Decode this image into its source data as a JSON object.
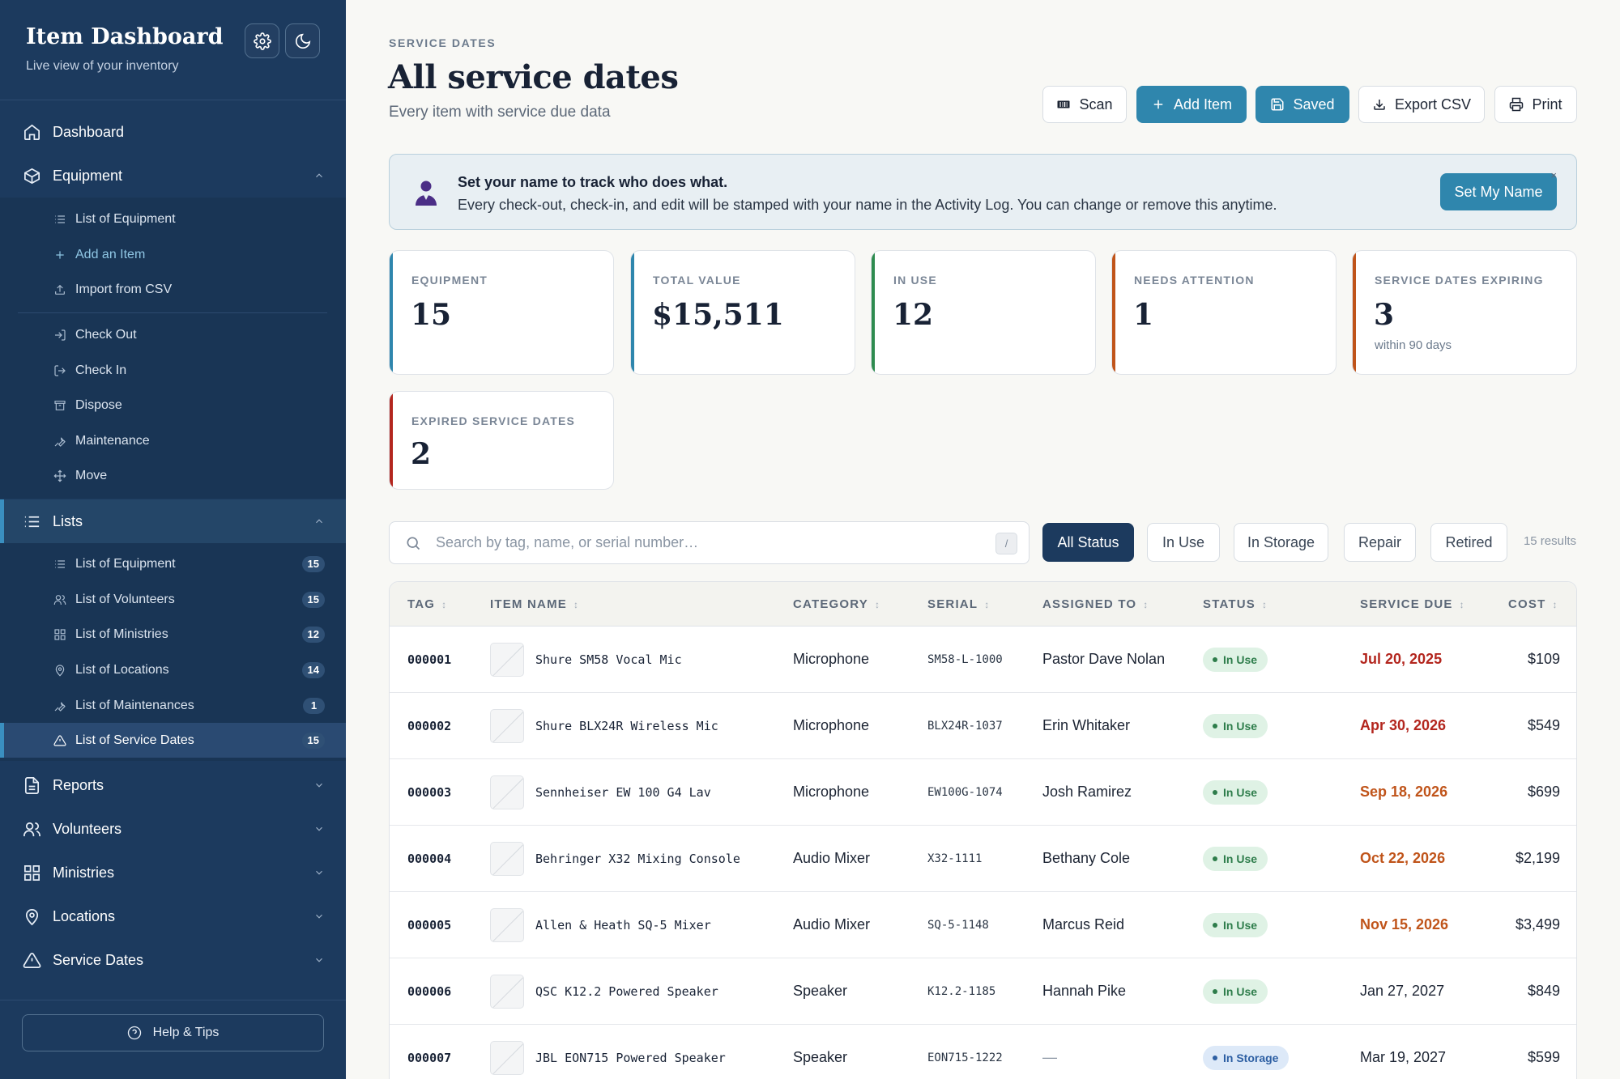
{
  "sidebar": {
    "title": "Item Dashboard",
    "subtitle": "Live view of your inventory",
    "nav": {
      "dashboard": "Dashboard",
      "equipment": "Equipment",
      "equipment_items": [
        "List of Equipment",
        "Add an Item",
        "Import from CSV"
      ],
      "action_items": [
        "Check Out",
        "Check In",
        "Dispose",
        "Maintenance",
        "Move"
      ],
      "lists": "Lists",
      "list_items": [
        {
          "label": "List of Equipment",
          "count": "15"
        },
        {
          "label": "List of Volunteers",
          "count": "15"
        },
        {
          "label": "List of Ministries",
          "count": "12"
        },
        {
          "label": "List of Locations",
          "count": "14"
        },
        {
          "label": "List of Maintenances",
          "count": "1"
        },
        {
          "label": "List of Service Dates",
          "count": "15"
        }
      ],
      "reports": "Reports",
      "volunteers": "Volunteers",
      "ministries": "Ministries",
      "locations": "Locations",
      "service_dates": "Service Dates"
    },
    "help": "Help & Tips"
  },
  "header": {
    "eyebrow": "SERVICE DATES",
    "title": "All service dates",
    "subtitle": "Every item with service due data"
  },
  "actions": {
    "scan": "Scan",
    "add": "Add Item",
    "saved": "Saved",
    "export": "Export CSV",
    "print": "Print"
  },
  "banner": {
    "title": "Set your name to track who does what.",
    "text": "Every check-out, check-in, and edit will be stamped with your name in the Activity Log. You can change or remove this anytime.",
    "button": "Set My Name",
    "close": "×"
  },
  "stats": [
    {
      "label": "EQUIPMENT",
      "value": "15",
      "note": "",
      "color": "#2f86ad"
    },
    {
      "label": "TOTAL VALUE",
      "value": "$15,511",
      "note": "",
      "color": "#2f86ad"
    },
    {
      "label": "IN USE",
      "value": "12",
      "note": "",
      "color": "#2e8b4f"
    },
    {
      "label": "NEEDS ATTENTION",
      "value": "1",
      "note": "",
      "color": "#c0541a"
    },
    {
      "label": "SERVICE DATES EXPIRING",
      "value": "3",
      "note": "within 90 days",
      "color": "#c0541a"
    },
    {
      "label": "EXPIRED SERVICE DATES",
      "value": "2",
      "note": "",
      "color": "#b3261e"
    }
  ],
  "filters": {
    "search_placeholder": "Search by tag, name, or serial number…",
    "shortcut": "/",
    "chips": [
      "All Status",
      "In Use",
      "In Storage",
      "Repair",
      "Retired"
    ],
    "results": "15 results"
  },
  "table": {
    "headers": [
      "TAG",
      "ITEM NAME",
      "CATEGORY",
      "SERIAL",
      "ASSIGNED TO",
      "STATUS",
      "SERVICE DUE",
      "COST"
    ],
    "sort_glyph": "↕",
    "rows": [
      {
        "tag": "000001",
        "name": "Shure SM58 Vocal Mic",
        "category": "Microphone",
        "serial": "SM58-L-1000",
        "assigned": "Pastor Dave Nolan",
        "status": "In Use",
        "due": "Jul 20, 2025",
        "cost": "$109"
      },
      {
        "tag": "000002",
        "name": "Shure BLX24R Wireless Mic",
        "category": "Microphone",
        "serial": "BLX24R-1037",
        "assigned": "Erin Whitaker",
        "status": "In Use",
        "due": "Apr 30, 2026",
        "cost": "$549"
      },
      {
        "tag": "000003",
        "name": "Sennheiser EW 100 G4 Lav",
        "category": "Microphone",
        "serial": "EW100G-1074",
        "assigned": "Josh Ramirez",
        "status": "In Use",
        "due": "Sep 18, 2026",
        "cost": "$699"
      },
      {
        "tag": "000004",
        "name": "Behringer X32 Mixing Console",
        "category": "Audio Mixer",
        "serial": "X32-1111",
        "assigned": "Bethany Cole",
        "status": "In Use",
        "due": "Oct 22, 2026",
        "cost": "$2,199"
      },
      {
        "tag": "000005",
        "name": "Allen & Heath SQ-5 Mixer",
        "category": "Audio Mixer",
        "serial": "SQ-5-1148",
        "assigned": "Marcus Reid",
        "status": "In Use",
        "due": "Nov 15, 2026",
        "cost": "$3,499"
      },
      {
        "tag": "000006",
        "name": "QSC K12.2 Powered Speaker",
        "category": "Speaker",
        "serial": "K12.2-1185",
        "assigned": "Hannah Pike",
        "status": "In Use",
        "due": "Jan 27, 2027",
        "cost": "$849"
      },
      {
        "tag": "000007",
        "name": "JBL EON715 Powered Speaker",
        "category": "Speaker",
        "serial": "EON715-1222",
        "assigned": "—",
        "status": "In Storage",
        "due": "Mar 19, 2027",
        "cost": "$599"
      }
    ]
  },
  "colors": {
    "sidebar": "#1c3a5e",
    "accent": "#2f86ad",
    "overdue": "#b3261e",
    "due_soon": "#c0541a"
  }
}
